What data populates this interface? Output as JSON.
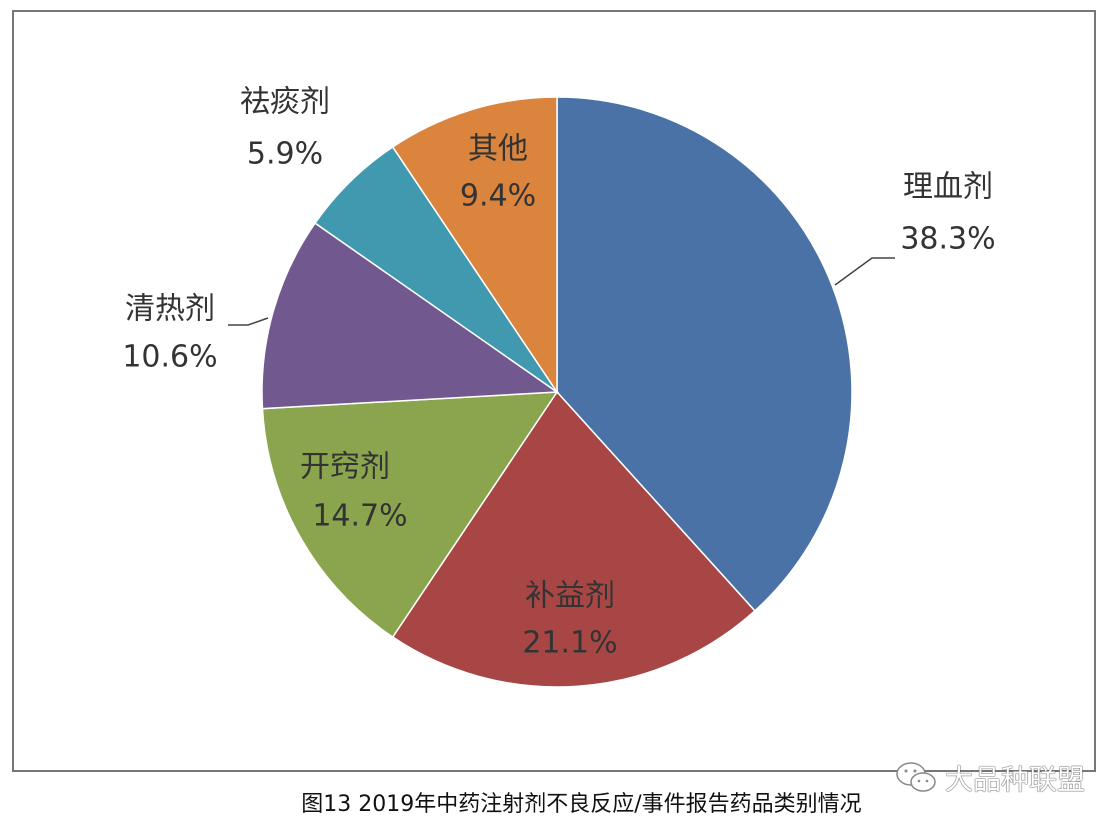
{
  "chart_data": {
    "type": "pie",
    "title": "",
    "start_angle_deg": 0,
    "direction": "clockwise",
    "slices": [
      {
        "label": "理血剂",
        "value": 38.3,
        "value_label": "38.3%",
        "color": "#4A72A6"
      },
      {
        "label": "补益剂",
        "value": 21.1,
        "value_label": "21.1%",
        "color": "#A74645"
      },
      {
        "label": "开窍剂",
        "value": 14.7,
        "value_label": "14.7%",
        "color": "#8AA54E"
      },
      {
        "label": "清热剂",
        "value": 10.6,
        "value_label": "10.6%",
        "color": "#71598F"
      },
      {
        "label": "祛痰剂",
        "value": 5.9,
        "value_label": "5.9%",
        "color": "#4199AF"
      },
      {
        "label": "其他",
        "value": 9.4,
        "value_label": "9.4%",
        "color": "#DB843D"
      }
    ]
  },
  "caption": "图13 2019年中药注射剂不良反应/事件报告药品类别情况",
  "watermark": {
    "icon": "wechat-icon",
    "text": "大品种联盟"
  }
}
